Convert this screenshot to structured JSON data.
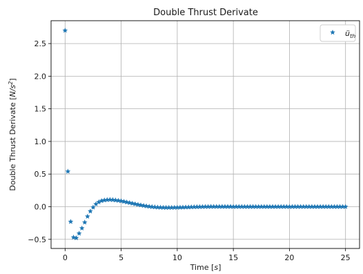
{
  "chart_data": {
    "type": "scatter",
    "title": "Double Thrust Derivate",
    "xlabel": "Time [s]",
    "ylabel": "Double Thrust Derivate [N/s²]",
    "xlim": [
      -1.25,
      26.25
    ],
    "ylim": [
      -0.64,
      2.85
    ],
    "xticks": [
      0,
      5,
      10,
      15,
      20,
      25
    ],
    "xtick_labels": [
      "0",
      "5",
      "10",
      "15",
      "20",
      "25"
    ],
    "yticks": [
      -0.5,
      0.0,
      0.5,
      1.0,
      1.5,
      2.0,
      2.5
    ],
    "ytick_labels": [
      "−0.5",
      "0.0",
      "0.5",
      "1.0",
      "1.5",
      "2.0",
      "2.5"
    ],
    "grid": true,
    "legend_position": "top-right",
    "series": [
      {
        "name": "ü_th",
        "marker": "star",
        "color": "#1f77b4",
        "x": [
          0.0,
          0.25,
          0.5,
          0.75,
          1.0,
          1.25,
          1.5,
          1.75,
          2.0,
          2.25,
          2.5,
          2.75,
          3.0,
          3.25,
          3.5,
          3.75,
          4.0,
          4.25,
          4.5,
          4.75,
          5.0,
          5.25,
          5.5,
          5.75,
          6.0,
          6.25,
          6.5,
          6.75,
          7.0,
          7.25,
          7.5,
          7.75,
          8.0,
          8.25,
          8.5,
          8.75,
          9.0,
          9.25,
          9.5,
          9.75,
          10.0,
          10.25,
          10.5,
          10.75,
          11.0,
          11.25,
          11.5,
          11.75,
          12.0,
          12.25,
          12.5,
          12.75,
          13.0,
          13.25,
          13.5,
          13.75,
          14.0,
          14.25,
          14.5,
          14.75,
          15.0,
          15.25,
          15.5,
          15.75,
          16.0,
          16.25,
          16.5,
          16.75,
          17.0,
          17.25,
          17.5,
          17.75,
          18.0,
          18.25,
          18.5,
          18.75,
          19.0,
          19.25,
          19.5,
          19.75,
          20.0,
          20.25,
          20.5,
          20.75,
          21.0,
          21.25,
          21.5,
          21.75,
          22.0,
          22.25,
          22.5,
          22.75,
          23.0,
          23.25,
          23.5,
          23.75,
          24.0,
          24.25,
          24.5,
          24.75,
          25.0
        ],
        "y": [
          2.7,
          0.54,
          -0.23,
          -0.47,
          -0.48,
          -0.41,
          -0.33,
          -0.24,
          -0.15,
          -0.07,
          -0.01,
          0.04,
          0.07,
          0.09,
          0.1,
          0.105,
          0.108,
          0.105,
          0.1,
          0.094,
          0.087,
          0.078,
          0.069,
          0.06,
          0.05,
          0.041,
          0.032,
          0.024,
          0.016,
          0.009,
          0.003,
          -0.002,
          -0.006,
          -0.009,
          -0.011,
          -0.013,
          -0.014,
          -0.014,
          -0.014,
          -0.013,
          -0.012,
          -0.011,
          -0.01,
          -0.008,
          -0.007,
          -0.005,
          -0.004,
          -0.003,
          -0.002,
          -0.001,
          0.0,
          0.0,
          0.001,
          0.001,
          0.001,
          0.001,
          0.001,
          0.001,
          0.001,
          0.001,
          0.0,
          0.0,
          0.0,
          0.0,
          0.0,
          0.0,
          0.0,
          0.0,
          0.0,
          0.0,
          0.0,
          0.0,
          0.0,
          0.0,
          0.0,
          0.0,
          0.0,
          0.0,
          0.0,
          0.0,
          0.0,
          0.0,
          0.0,
          0.0,
          0.0,
          0.0,
          0.0,
          0.0,
          0.0,
          0.0,
          0.0,
          0.0,
          0.0,
          0.0,
          0.0,
          0.0,
          0.0,
          0.0,
          0.0,
          0.0,
          0.0
        ]
      }
    ]
  }
}
